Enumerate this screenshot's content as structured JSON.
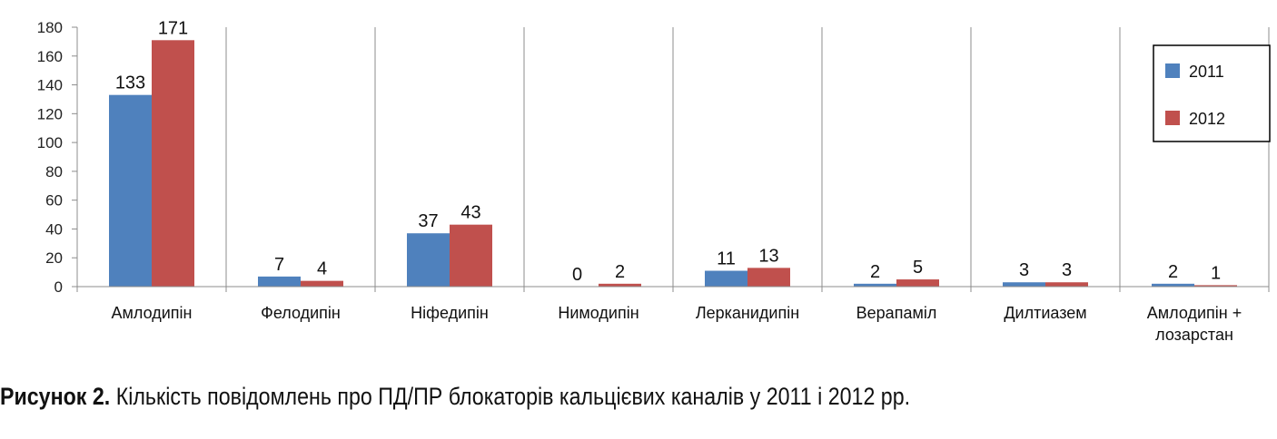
{
  "chart_data": {
    "type": "bar",
    "categories": [
      "Амлодипін",
      "Фелодипін",
      "Ніфедипін",
      "Нимодипін",
      "Лерканидипін",
      "Верапаміл",
      "Дилтиазем",
      "Амлодипін + лозарстан"
    ],
    "category_lines": [
      [
        "Амлодипін"
      ],
      [
        "Фелодипін"
      ],
      [
        "Ніфедипін"
      ],
      [
        "Нимодипін"
      ],
      [
        "Лерканидипін"
      ],
      [
        "Верапаміл"
      ],
      [
        "Дилтиазем"
      ],
      [
        "Амлодипін +",
        "лозарстан"
      ]
    ],
    "series": [
      {
        "name": "2011",
        "values": [
          133,
          7,
          37,
          0,
          11,
          2,
          3,
          2
        ],
        "color": "#4F81BD"
      },
      {
        "name": "2012",
        "values": [
          171,
          4,
          43,
          2,
          13,
          5,
          3,
          1
        ],
        "color": "#C0504D"
      }
    ],
    "ylim": [
      0,
      180
    ],
    "yticks": [
      0,
      20,
      40,
      60,
      80,
      100,
      120,
      140,
      160,
      180
    ],
    "grid": "vertical category lines",
    "legend": "right",
    "data_labels": true
  },
  "caption": {
    "lead": "Рисунок 2.",
    "text": " Кількість повідомлень про ПД/ПР блокаторів кальцієвих каналів у 2011 і 2012 рр."
  }
}
